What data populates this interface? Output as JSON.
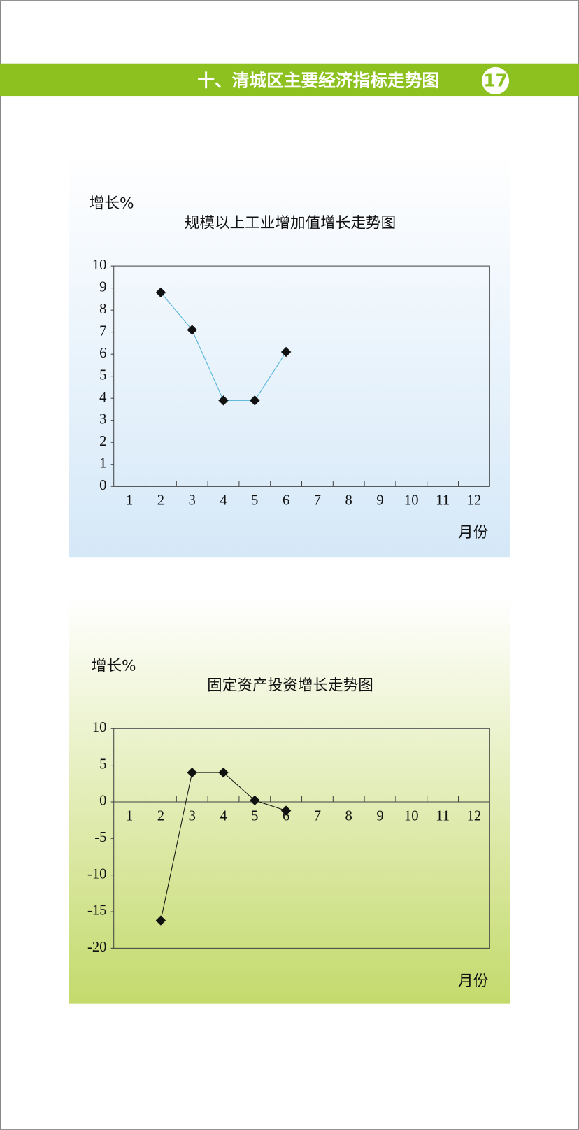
{
  "header": {
    "title": "十、清城区主要经济指标走势图",
    "page_number": "17"
  },
  "chart_data": [
    {
      "type": "line",
      "title": "规模以上工业增加值增长走势图",
      "y_label": "增长%",
      "x_label": "月份",
      "categories": [
        "1",
        "2",
        "3",
        "4",
        "5",
        "6",
        "7",
        "8",
        "9",
        "10",
        "11",
        "12"
      ],
      "values": [
        null,
        8.8,
        7.1,
        3.9,
        3.9,
        6.1,
        null,
        null,
        null,
        null,
        null,
        null
      ],
      "color": "#4fb3d9",
      "marker_color": "#111111",
      "ylim": [
        0,
        10
      ],
      "yticks": [
        0,
        1,
        2,
        3,
        4,
        5,
        6,
        7,
        8,
        9,
        10
      ]
    },
    {
      "type": "line",
      "title": "固定资产投资增长走势图",
      "y_label": "增长%",
      "x_label": "月份",
      "categories": [
        "1",
        "2",
        "3",
        "4",
        "5",
        "6",
        "7",
        "8",
        "9",
        "10",
        "11",
        "12"
      ],
      "values": [
        null,
        -16.2,
        4,
        4,
        0.2,
        -1.2,
        null,
        null,
        null,
        null,
        null,
        null
      ],
      "color": "#111111",
      "marker_color": "#111111",
      "ylim": [
        -20,
        10
      ],
      "yticks": [
        -20,
        -15,
        -10,
        -5,
        0,
        5,
        10
      ]
    }
  ]
}
